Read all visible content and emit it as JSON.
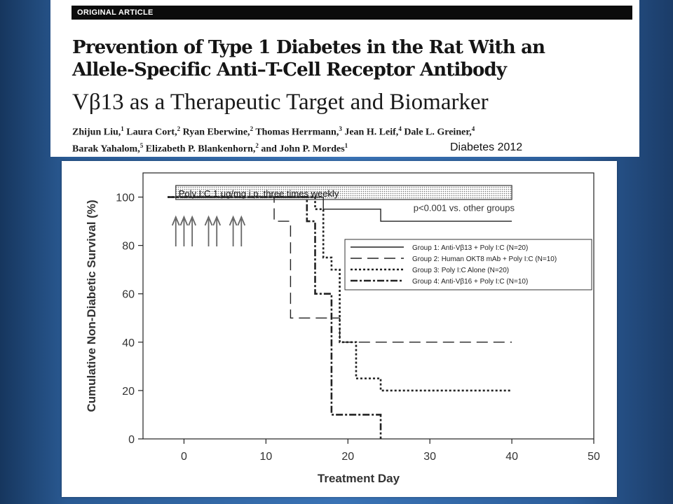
{
  "article": {
    "section_label": "ORIGINAL ARTICLE",
    "title": "Prevention of Type 1 Diabetes in the Rat With an Allele-Specific Anti–T-Cell Receptor Antibody",
    "subtitle": "Vβ13 as a Therapeutic Target and Biomarker",
    "authors": [
      {
        "name": "Zhijun Liu,",
        "aff": "1"
      },
      {
        "name": "Laura Cort,",
        "aff": "2"
      },
      {
        "name": "Ryan Eberwine,",
        "aff": "2"
      },
      {
        "name": "Thomas Herrmann,",
        "aff": "3"
      },
      {
        "name": "Jean H. Leif,",
        "aff": "4"
      },
      {
        "name": "Dale L. Greiner,",
        "aff": "4"
      },
      {
        "name": "Barak Yahalom,",
        "aff": "5"
      },
      {
        "name": "Elizabeth P. Blankenhorn,",
        "aff": "2"
      },
      {
        "name": "and John P. Mordes",
        "aff": "1"
      }
    ],
    "journal_label": "Diabetes 2012"
  },
  "chart_data": {
    "type": "line",
    "step": true,
    "xlabel": "Treatment Day",
    "ylabel": "Cumulative Non-Diabetic Survival (%)",
    "xlim": [
      -5,
      50
    ],
    "ylim": [
      0,
      110
    ],
    "xticks": [
      0,
      10,
      20,
      30,
      40,
      50
    ],
    "yticks": [
      0,
      20,
      40,
      60,
      80,
      100
    ],
    "treatment_bar_label": "Poly I:C 1  μg/mg i.p. three times weekly",
    "treatment_bar_range": [
      -1,
      40
    ],
    "injection_days": [
      -1,
      0,
      1,
      3,
      4,
      6,
      7
    ],
    "annotation": "p<0.001 vs. other groups",
    "legend_position": "center-right",
    "series": [
      {
        "name": "Group 1: Anti-Vβ13 + Poly I:C (N=20)",
        "style": "solid",
        "x": [
          -2,
          17,
          24,
          40
        ],
        "y": [
          100,
          95,
          90,
          90
        ]
      },
      {
        "name": "Group 2: Human OKT8 mAb + Poly I:C (N=10)",
        "style": "long-dash",
        "x": [
          -2,
          11,
          13,
          19,
          40
        ],
        "y": [
          100,
          90,
          50,
          40,
          40
        ]
      },
      {
        "name": "Group 3: Poly I:C Alone (N=20)",
        "style": "dotted",
        "x": [
          -2,
          16,
          17,
          18,
          19,
          21,
          24,
          40
        ],
        "y": [
          100,
          95,
          75,
          70,
          40,
          25,
          20,
          20
        ]
      },
      {
        "name": "Group 4: Anti-Vβ16 + Poly I:C (N=10)",
        "style": "dash-dot",
        "x": [
          -2,
          15,
          16,
          18,
          24
        ],
        "y": [
          100,
          90,
          60,
          10,
          0
        ]
      }
    ]
  }
}
